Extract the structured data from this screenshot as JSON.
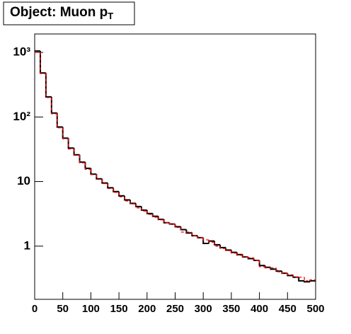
{
  "chart_data": {
    "type": "histogram",
    "title": [
      "Object: Muon p",
      "T"
    ],
    "bins": [
      0,
      10,
      20,
      30,
      40,
      50,
      60,
      70,
      80,
      90,
      100,
      110,
      120,
      130,
      140,
      150,
      160,
      170,
      180,
      190,
      200,
      210,
      220,
      230,
      240,
      250,
      260,
      270,
      280,
      290,
      300,
      310,
      320,
      330,
      340,
      350,
      360,
      370,
      380,
      390,
      400,
      410,
      420,
      430,
      440,
      450,
      460,
      470,
      480,
      490,
      500
    ],
    "series": [
      {
        "color": "#000000",
        "dash": false,
        "values": [
          1050,
          480,
          205,
          115,
          70,
          47,
          33,
          26,
          20,
          16,
          13,
          11,
          9.5,
          8,
          7,
          6,
          5.2,
          4.6,
          4.1,
          3.6,
          3.2,
          2.9,
          2.6,
          2.3,
          2.2,
          2.0,
          1.8,
          1.6,
          1.45,
          1.35,
          1.1,
          1.2,
          1.05,
          0.95,
          0.87,
          0.8,
          0.74,
          0.68,
          0.64,
          0.6,
          0.5,
          0.47,
          0.44,
          0.41,
          0.38,
          0.35,
          0.33,
          0.29,
          0.28,
          0.29
        ]
      },
      {
        "color": "#ff0000",
        "dash": true,
        "values": [
          1000,
          470,
          200,
          112,
          68,
          46,
          32,
          25.5,
          19.5,
          15.5,
          12.8,
          10.8,
          9.3,
          7.8,
          6.8,
          5.8,
          5.0,
          4.5,
          3.9,
          3.5,
          3.1,
          2.8,
          2.55,
          2.3,
          2.2,
          1.95,
          1.65,
          1.65,
          1.45,
          1.35,
          1.25,
          1.15,
          1.0,
          0.92,
          0.85,
          0.78,
          0.72,
          0.68,
          0.66,
          0.6,
          0.48,
          0.46,
          0.46,
          0.4,
          0.38,
          0.36,
          0.33,
          0.33,
          0.29,
          0.3
        ]
      }
    ],
    "xlim": [
      0,
      500
    ],
    "xticks": [
      0,
      50,
      100,
      150,
      200,
      250,
      300,
      350,
      400,
      450,
      500
    ],
    "ylim": [
      0.15,
      1930
    ],
    "log_y": true,
    "yticks": [
      1,
      10,
      {
        "value": 100,
        "label": "10²"
      },
      {
        "value": 1000,
        "label": "10³"
      }
    ]
  }
}
